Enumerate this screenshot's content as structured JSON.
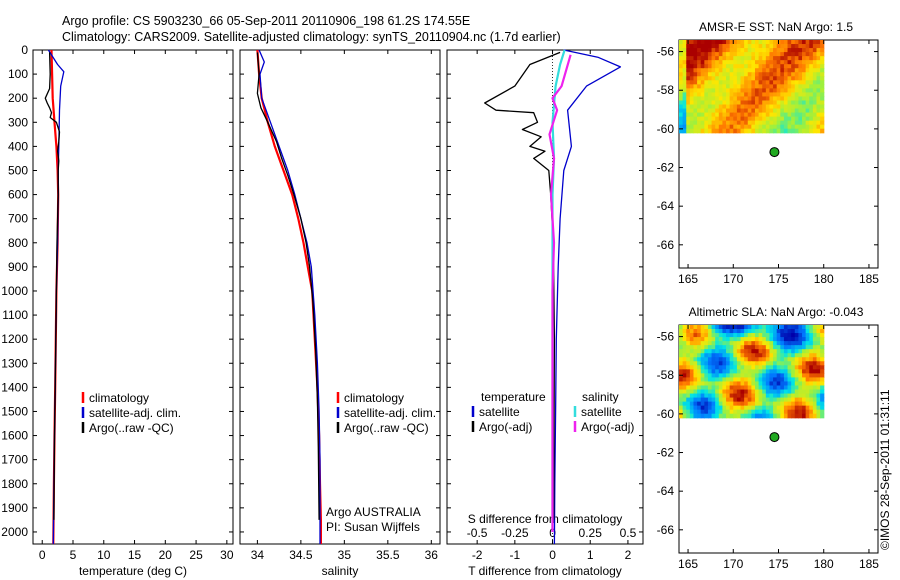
{
  "header": {
    "title_line1": "Argo profile: CS 5903230_66 05-Sep-2011 20110906_198 61.2S 174.55E",
    "title_line2": "Climatology: CARS2009. Satellite-adjusted climatology: synTS_20110904.nc (1.7d earlier)"
  },
  "colors": {
    "climatology": "#ff0000",
    "satellite": "#0000cc",
    "argo": "#000000",
    "salinity_satellite": "#33dddd",
    "salinity_argo": "#ee22ee",
    "marker": "#22aa22"
  },
  "chart_data": [
    {
      "id": "temperature",
      "type": "line",
      "xlabel": "temperature (deg C)",
      "xlim": [
        -1.5,
        31
      ],
      "ylim": [
        2050,
        0
      ],
      "xticks": [
        0,
        5,
        10,
        15,
        20,
        25,
        30
      ],
      "yticks": [
        0,
        100,
        200,
        300,
        400,
        500,
        600,
        700,
        800,
        900,
        1000,
        1100,
        1200,
        1300,
        1400,
        1500,
        1600,
        1700,
        1800,
        1900,
        2000
      ],
      "legend": [
        "climatology",
        "satellite-adj. clim.",
        "Argo(..raw -QC)"
      ],
      "series": [
        {
          "name": "climatology",
          "color": "#ff0000",
          "width": 2.2,
          "x": [
            1.5,
            1.6,
            1.7,
            2.0,
            2.3,
            2.5,
            2.6,
            2.5,
            2.3,
            2.2,
            2.1,
            2.0,
            1.9,
            1.8
          ],
          "y": [
            0,
            100,
            200,
            300,
            400,
            500,
            600,
            800,
            1000,
            1200,
            1400,
            1600,
            1800,
            2050
          ]
        },
        {
          "name": "satellite-adj. clim.",
          "color": "#0000cc",
          "width": 1.3,
          "x": [
            1.0,
            2.5,
            3.5,
            3.0,
            2.8,
            2.7,
            2.6,
            2.6,
            2.5,
            2.3,
            2.2,
            2.1,
            2.0,
            1.9,
            1.8
          ],
          "y": [
            0,
            60,
            90,
            150,
            250,
            400,
            500,
            600,
            800,
            1000,
            1200,
            1400,
            1600,
            1800,
            2050
          ]
        },
        {
          "name": "Argo(..raw -QC)",
          "color": "#000000",
          "width": 1.3,
          "x": [
            1.2,
            1.3,
            1.2,
            0.5,
            0.8,
            1.2,
            1.5,
            1.3,
            2.3,
            2.8,
            2.7,
            2.5,
            2.7,
            2.6,
            2.6,
            2.4,
            2.3,
            2.2,
            2.1,
            2.0,
            1.9
          ],
          "y": [
            10,
            100,
            160,
            200,
            220,
            240,
            260,
            280,
            300,
            340,
            380,
            420,
            460,
            500,
            600,
            800,
            1000,
            1200,
            1400,
            1600,
            1950
          ]
        }
      ]
    },
    {
      "id": "salinity",
      "type": "line",
      "xlabel": "salinity",
      "xlim": [
        33.8,
        36.1
      ],
      "ylim": [
        2050,
        0
      ],
      "xticks": [
        34,
        34.5,
        35,
        35.5,
        36
      ],
      "xtick_labels": [
        "34",
        "34.5",
        "35",
        "35.5",
        "36"
      ],
      "legend": [
        "climatology",
        "satellite-adj. clim.",
        "Argo(..raw -QC)"
      ],
      "annotation": [
        "Argo AUSTRALIA",
        "PI: Susan Wijffels"
      ],
      "series": [
        {
          "name": "climatology",
          "color": "#ff0000",
          "width": 2.2,
          "x": [
            34.0,
            34.02,
            34.05,
            34.12,
            34.2,
            34.3,
            34.4,
            34.47,
            34.53,
            34.58,
            34.63,
            34.66,
            34.69,
            34.71,
            34.72,
            34.73,
            34.73
          ],
          "y": [
            0,
            100,
            200,
            300,
            400,
            500,
            600,
            700,
            800,
            900,
            1000,
            1200,
            1400,
            1600,
            1800,
            1950,
            2050
          ]
        },
        {
          "name": "satellite-adj. clim.",
          "color": "#0000cc",
          "width": 1.3,
          "x": [
            34.02,
            34.08,
            34.03,
            34.05,
            34.1,
            34.25,
            34.35,
            34.43,
            34.5,
            34.57,
            34.62,
            34.66,
            34.69,
            34.71,
            34.72,
            34.72,
            34.72
          ],
          "y": [
            0,
            50,
            100,
            200,
            250,
            400,
            500,
            600,
            700,
            800,
            900,
            1100,
            1300,
            1500,
            1700,
            1900,
            2050
          ]
        },
        {
          "name": "Argo(..raw -QC)",
          "color": "#000000",
          "width": 1.3,
          "x": [
            34.0,
            34.02,
            34.0,
            34.04,
            34.12,
            34.22,
            34.28,
            34.35,
            34.42,
            34.5,
            34.56,
            34.6,
            34.64,
            34.67,
            34.69,
            34.7,
            34.71
          ],
          "y": [
            10,
            100,
            180,
            240,
            300,
            380,
            450,
            520,
            600,
            700,
            800,
            900,
            1050,
            1250,
            1450,
            1650,
            1950
          ]
        }
      ]
    },
    {
      "id": "differences",
      "type": "line",
      "xlabel_T": "T difference from climatology",
      "xlabel_S": "S difference from climatology",
      "xlim": [
        -2.8,
        2.4
      ],
      "ylim": [
        2050,
        0
      ],
      "xticks_T": [
        -2,
        -1,
        0,
        1,
        2
      ],
      "xtick_labels_T": [
        "-2",
        "-1",
        "0",
        "1",
        "2"
      ],
      "xticks_S": [
        -0.5,
        -0.25,
        0,
        0.25,
        0.5
      ],
      "xtick_labels_S": [
        "-0.5",
        "-0.25",
        "0",
        "0.25",
        "0.5"
      ],
      "s_scale": 4,
      "legend_headers": [
        "temperature",
        "salinity"
      ],
      "legend_left": [
        "satellite",
        "Argo(-adj)"
      ],
      "legend_right": [
        "satellite",
        "Argo(-adj)"
      ],
      "series": [
        {
          "name": "T satellite",
          "color": "#0000cc",
          "width": 1.3,
          "x": [
            0.3,
            1.2,
            1.8,
            0.9,
            0.4,
            0.5,
            0.3,
            0.2,
            0.15,
            0.1,
            0.08,
            0.06,
            0.05
          ],
          "y": [
            0,
            30,
            70,
            150,
            250,
            400,
            500,
            700,
            900,
            1200,
            1500,
            1800,
            2050
          ]
        },
        {
          "name": "T Argo(-adj)",
          "color": "#000000",
          "width": 1.3,
          "x": [
            0.2,
            -0.6,
            -1.0,
            -1.8,
            -1.5,
            -0.5,
            -0.4,
            -0.8,
            -0.3,
            -0.6,
            -0.2,
            -0.5,
            -0.1,
            -0.05,
            0.02,
            0.05,
            0.04,
            0.03
          ],
          "y": [
            10,
            60,
            150,
            220,
            250,
            260,
            300,
            330,
            360,
            400,
            420,
            450,
            500,
            600,
            800,
            1200,
            1600,
            1950
          ]
        },
        {
          "name": "S satellite",
          "color": "#33dddd",
          "width": 2.2,
          "x": [
            0.08,
            0.05,
            0.02,
            0.0,
            0.01,
            0.0,
            0.0,
            0.0,
            0.0,
            0.0,
            0.0
          ],
          "y": [
            0,
            60,
            150,
            300,
            450,
            600,
            800,
            1100,
            1400,
            1700,
            2000
          ]
        },
        {
          "name": "S Argo(-adj)",
          "color": "#ee22ee",
          "width": 2.2,
          "x": [
            0.12,
            0.06,
            0.0,
            0.03,
            -0.02,
            0.01,
            -0.01,
            0.01,
            0.0,
            0.0,
            0.0
          ],
          "y": [
            20,
            150,
            200,
            250,
            350,
            450,
            600,
            800,
            1000,
            1500,
            2000
          ]
        }
      ]
    },
    {
      "id": "amsre_sst",
      "type": "heatmap",
      "title": "AMSR-E SST: NaN Argo: 1.5",
      "xlim": [
        164,
        186
      ],
      "ylim": [
        -67.2,
        -55.4
      ],
      "xticks": [
        165,
        170,
        175,
        180,
        185
      ],
      "yticks": [
        -56,
        -58,
        -60,
        -62,
        -64,
        -66
      ],
      "data_extent": {
        "lon": [
          164,
          180
        ],
        "lat": [
          -60.2,
          -55.4
        ]
      },
      "argo_position": {
        "lon": 174.55,
        "lat": -61.2
      }
    },
    {
      "id": "altimetric_sla",
      "type": "heatmap",
      "title": "Altimetric SLA: NaN Argo: -0.043",
      "xlim": [
        164,
        186
      ],
      "ylim": [
        -67.2,
        -55.4
      ],
      "xticks": [
        165,
        170,
        175,
        180,
        185
      ],
      "yticks": [
        -56,
        -58,
        -60,
        -62,
        -64,
        -66
      ],
      "data_extent": {
        "lon": [
          164,
          180
        ],
        "lat": [
          -60.2,
          -55.4
        ]
      },
      "argo_position": {
        "lon": 174.55,
        "lat": -61.2
      }
    }
  ],
  "footer": {
    "stamp": "©IMOS 28-Sep-2011 01:31:11"
  }
}
